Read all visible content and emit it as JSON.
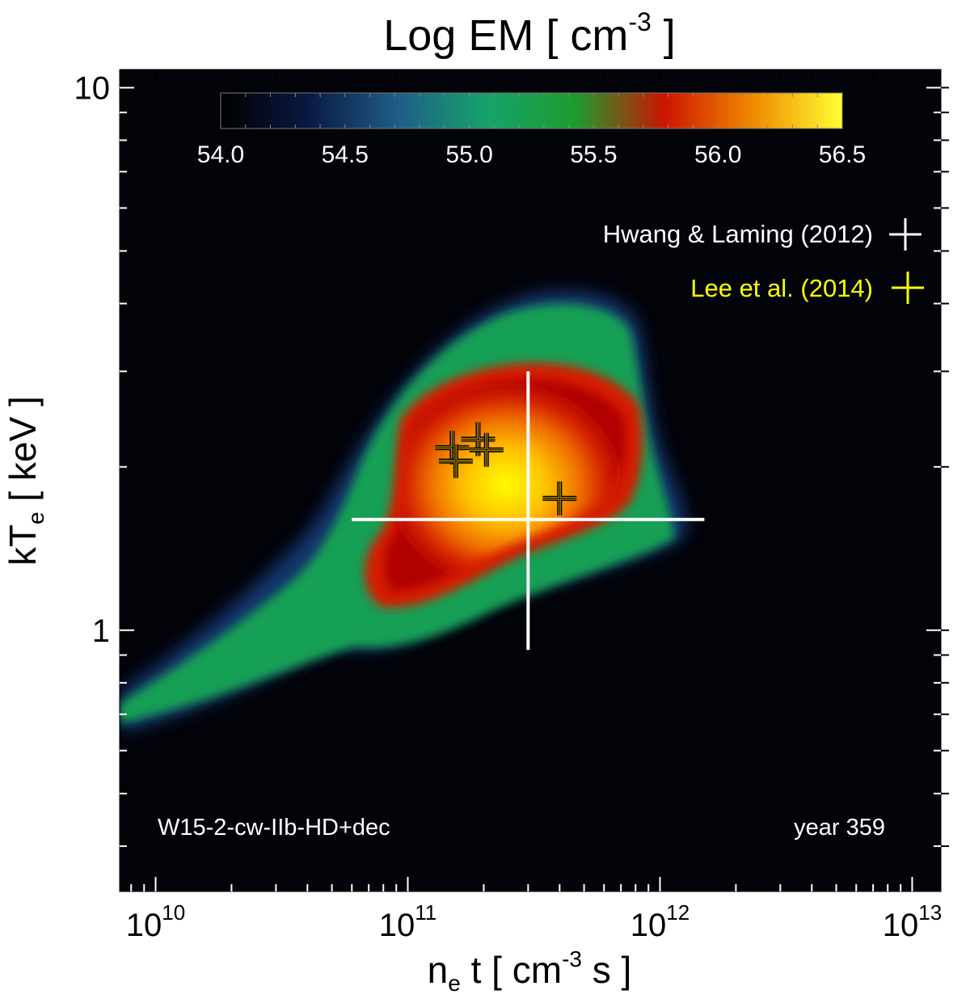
{
  "chart_data": {
    "type": "heatmap",
    "title": "Log EM [ cm",
    "title_sup": "-3",
    "title_end": " ]",
    "xlabel": {
      "base": "n",
      "sub": "e",
      "mid": " t [ cm",
      "sup": "-3",
      "end": " s ]"
    },
    "ylabel": {
      "base": "kT",
      "sub": "e",
      "end": " [ keV ]"
    },
    "x_scale": "log",
    "y_scale": "log",
    "xlim": [
      7200000000.0,
      13000000000000.0
    ],
    "ylim": [
      0.33,
      10.8
    ],
    "x_ticks": [
      {
        "value": 10000000000.0,
        "base": "10",
        "exp": "10"
      },
      {
        "value": 100000000000.0,
        "base": "10",
        "exp": "11"
      },
      {
        "value": 1000000000000.0,
        "base": "10",
        "exp": "12"
      },
      {
        "value": 10000000000000.0,
        "base": "10",
        "exp": "13"
      }
    ],
    "y_ticks": [
      {
        "value": 1,
        "label": "1"
      },
      {
        "value": 10,
        "label": "10"
      }
    ],
    "colorbar": {
      "range": [
        54.0,
        56.5
      ],
      "ticks": [
        "54.0",
        "54.5",
        "55.0",
        "55.5",
        "56.0",
        "56.5"
      ],
      "colors": [
        "#000000",
        "#0a1a44",
        "#1f5e88",
        "#15a36a",
        "#1e9b2e",
        "#cc1500",
        "#f08a00",
        "#ffff33"
      ]
    },
    "series": [
      {
        "name": "Hwang & Laming (2012)",
        "color": "#ffffff",
        "points": [
          {
            "x": 300000000000.0,
            "y": 1.6,
            "xerr": [
              60000000000.0,
              1500000000000.0
            ],
            "yerr": [
              0.92,
              3.0
            ]
          }
        ]
      },
      {
        "name": "Lee et al. (2014)",
        "color": "#ffff00",
        "points": [
          {
            "x": 150000000000.0,
            "y": 2.17
          },
          {
            "x": 155000000000.0,
            "y": 2.05
          },
          {
            "x": 190000000000.0,
            "y": 2.25
          },
          {
            "x": 205000000000.0,
            "y": 2.15
          },
          {
            "x": 400000000000.0,
            "y": 1.75
          }
        ]
      }
    ],
    "annotations": {
      "model": "W15-2-cw-IIb-HD+dec",
      "age": "year 359"
    },
    "grid": false,
    "legend_position": "top-right"
  }
}
